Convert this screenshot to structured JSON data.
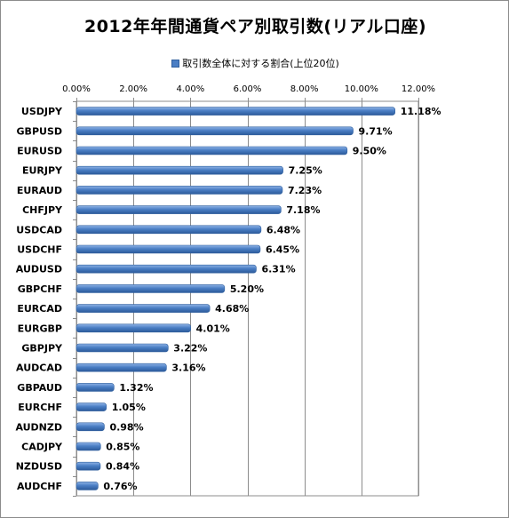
{
  "chart_data": {
    "type": "bar",
    "orientation": "horizontal",
    "title": "2012年年間通貨ペア別取引数(リアル口座)",
    "legend": {
      "position": "top",
      "entries": [
        "取引数全体に対する割合(上位20位)"
      ]
    },
    "series": [
      {
        "name": "取引数全体に対する割合(上位20位)",
        "color": "#4a7ec4",
        "values": [
          11.18,
          9.71,
          9.5,
          7.25,
          7.23,
          7.18,
          6.48,
          6.45,
          6.31,
          5.2,
          4.68,
          4.01,
          3.22,
          3.16,
          1.32,
          1.05,
          0.98,
          0.85,
          0.84,
          0.76
        ],
        "labels": [
          "11.18%",
          "9.71%",
          "9.50%",
          "7.25%",
          "7.23%",
          "7.18%",
          "6.48%",
          "6.45%",
          "6.31%",
          "5.20%",
          "4.68%",
          "4.01%",
          "3.22%",
          "3.16%",
          "1.32%",
          "1.05%",
          "0.98%",
          "0.85%",
          "0.84%",
          "0.76%"
        ]
      }
    ],
    "categories": [
      "USDJPY",
      "GBPUSD",
      "EURUSD",
      "EURJPY",
      "EURAUD",
      "CHFJPY",
      "USDCAD",
      "USDCHF",
      "AUDUSD",
      "GBPCHF",
      "EURCAD",
      "EURGBP",
      "GBPJPY",
      "AUDCAD",
      "GBPAUD",
      "EURCHF",
      "AUDNZD",
      "CADJPY",
      "NZDUSD",
      "AUDCHF"
    ],
    "xaxis": {
      "position": "top",
      "range": [
        0,
        12
      ],
      "ticks": [
        0,
        2,
        4,
        6,
        8,
        10,
        12
      ],
      "tick_labels": [
        "0.00%",
        "2.00%",
        "4.00%",
        "6.00%",
        "8.00%",
        "10.00%",
        "12.00%"
      ]
    },
    "grid": true
  }
}
